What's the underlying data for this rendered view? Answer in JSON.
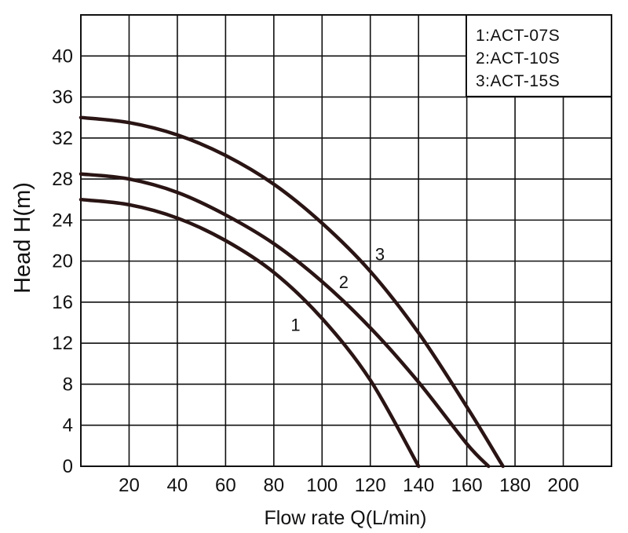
{
  "chart_data": {
    "type": "line",
    "title": "",
    "xlabel": "Flow rate Q(L/min)",
    "ylabel": "Head H(m)",
    "xlim": [
      0,
      220
    ],
    "ylim": [
      0,
      44
    ],
    "x_ticks": [
      20,
      40,
      60,
      80,
      100,
      120,
      140,
      160,
      180,
      200
    ],
    "y_ticks": [
      0,
      4,
      8,
      12,
      16,
      20,
      24,
      28,
      32,
      36,
      40
    ],
    "grid": true,
    "legend": {
      "position": "top-right",
      "entries": [
        "1:ACT-07S",
        "2:ACT-10S",
        "3:ACT-15S"
      ]
    },
    "series": [
      {
        "label": "1",
        "x": [
          0,
          20,
          40,
          60,
          80,
          100,
          120,
          140
        ],
        "y": [
          26,
          25.5,
          24.2,
          22,
          18.9,
          14.4,
          8.4,
          0
        ]
      },
      {
        "label": "2",
        "x": [
          0,
          20,
          40,
          60,
          80,
          100,
          120,
          140,
          160,
          169
        ],
        "y": [
          28.5,
          28,
          26.7,
          24.5,
          21.7,
          18,
          13.5,
          8.2,
          2.2,
          0
        ]
      },
      {
        "label": "3",
        "x": [
          0,
          20,
          40,
          60,
          80,
          100,
          120,
          140,
          160,
          175
        ],
        "y": [
          34,
          33.5,
          32.3,
          30.3,
          27.5,
          23.7,
          19,
          13,
          5.8,
          0
        ]
      }
    ],
    "curve_label_points": [
      {
        "text": "1",
        "x": 89,
        "y": 13.8
      },
      {
        "text": "2",
        "x": 109,
        "y": 18
      },
      {
        "text": "3",
        "x": 124,
        "y": 20.7
      }
    ]
  }
}
